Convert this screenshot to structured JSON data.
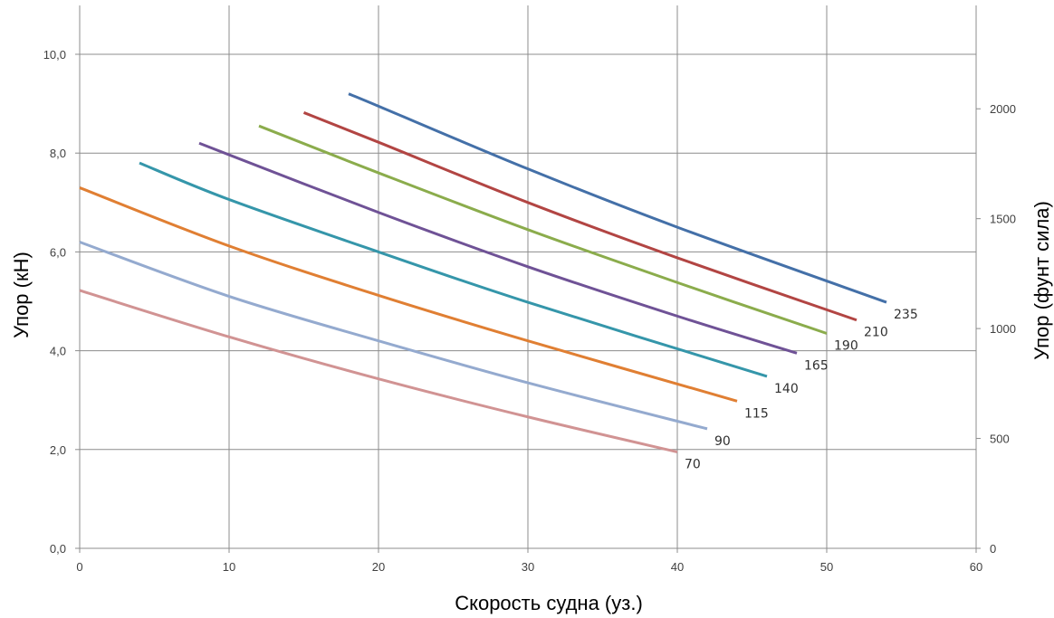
{
  "chart_data": {
    "type": "line",
    "title": "",
    "xlabel": "Скорость судна (уз.)",
    "ylabel": "Упор (кН)",
    "y2label": "Упор (фунт сила)",
    "xlim": [
      0,
      60
    ],
    "ylim": [
      0,
      10
    ],
    "y2lim": [
      0,
      2248
    ],
    "x_ticks": [
      "0",
      "10",
      "20",
      "30",
      "40",
      "50",
      "60"
    ],
    "y_ticks": [
      "0,0",
      "2,0",
      "4,0",
      "6,0",
      "8,0",
      "10,0"
    ],
    "y2_ticks": [
      "0",
      "500",
      "1000",
      "1500",
      "2000"
    ],
    "grid": true,
    "legend": "inline labels at line ends",
    "series": [
      {
        "name": "70",
        "color": "#d19393",
        "x": [
          0,
          10,
          20,
          30,
          40
        ],
        "y": [
          5.22,
          4.28,
          3.43,
          2.66,
          1.95
        ]
      },
      {
        "name": "90",
        "color": "#94aacf",
        "x": [
          0,
          10,
          20,
          30,
          42
        ],
        "y": [
          6.2,
          5.1,
          4.2,
          3.35,
          2.42
        ]
      },
      {
        "name": "115",
        "color": "#e07f33",
        "x": [
          0,
          10,
          20,
          30,
          44
        ],
        "y": [
          7.3,
          6.12,
          5.12,
          4.2,
          2.98
        ]
      },
      {
        "name": "140",
        "color": "#3596aa",
        "x": [
          4,
          10,
          20,
          30,
          46
        ],
        "y": [
          7.8,
          7.06,
          6.0,
          4.98,
          3.48
        ]
      },
      {
        "name": "165",
        "color": "#6f5296",
        "x": [
          8,
          20,
          30,
          40,
          48
        ],
        "y": [
          8.2,
          6.8,
          5.7,
          4.7,
          3.95
        ]
      },
      {
        "name": "190",
        "color": "#8bac4c",
        "x": [
          12,
          20,
          30,
          40,
          50
        ],
        "y": [
          8.55,
          7.6,
          6.45,
          5.38,
          4.35
        ]
      },
      {
        "name": "210",
        "color": "#b24543",
        "x": [
          15,
          20,
          30,
          40,
          52
        ],
        "y": [
          8.82,
          8.22,
          7.0,
          5.88,
          4.62
        ]
      },
      {
        "name": "235",
        "color": "#4470a8",
        "x": [
          18,
          20,
          30,
          40,
          54
        ],
        "y": [
          9.2,
          8.95,
          7.68,
          6.5,
          4.98
        ]
      }
    ]
  }
}
